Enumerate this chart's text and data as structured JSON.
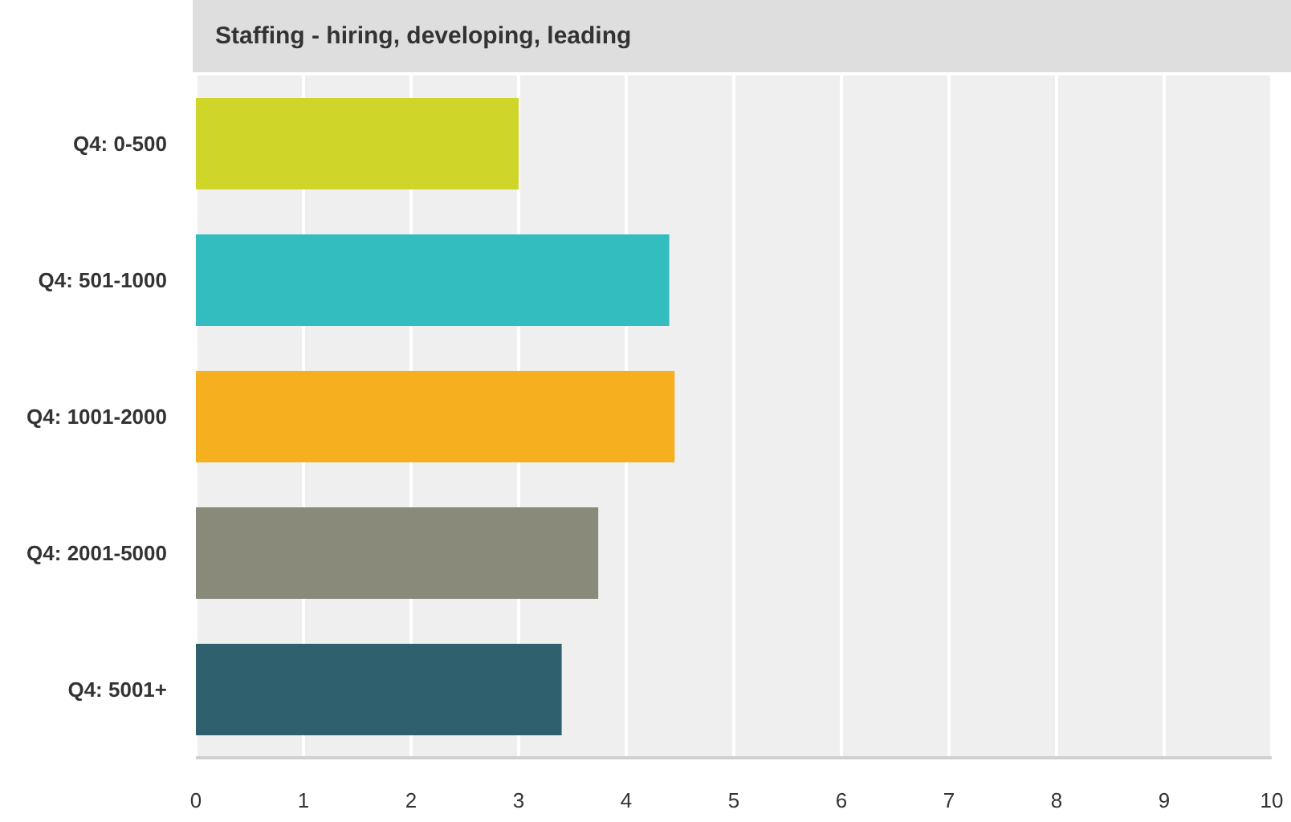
{
  "chart_data": {
    "type": "bar",
    "orientation": "horizontal",
    "title": "Staffing - hiring, developing, leading",
    "categories": [
      "Q4: 0-500",
      "Q4: 501-1000",
      "Q4: 1001-2000",
      "Q4: 2001-5000",
      "Q4: 5001+"
    ],
    "values": [
      3.0,
      4.4,
      4.45,
      3.74,
      3.4
    ],
    "colors": [
      "#d0d52a",
      "#33bdbf",
      "#f6b01f",
      "#8a8a7a",
      "#2e606d"
    ],
    "xlim": [
      0,
      10
    ],
    "xticks": [
      0,
      1,
      2,
      3,
      4,
      5,
      6,
      7,
      8,
      9,
      10
    ],
    "grid": "x",
    "legend": false
  }
}
